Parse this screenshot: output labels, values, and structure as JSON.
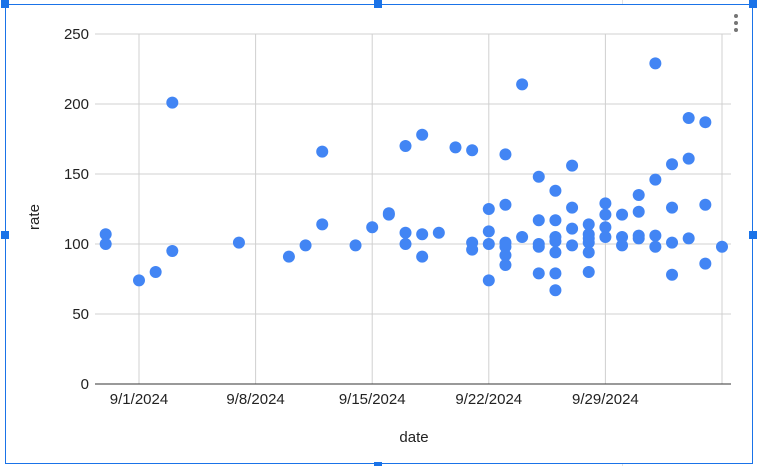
{
  "chart_data": {
    "type": "scatter",
    "title": "",
    "xlabel": "date",
    "ylabel": "rate",
    "ylim": [
      0,
      250
    ],
    "xlim": [
      "2024-08-29",
      "2024-10-07"
    ],
    "yticks": [
      "0",
      "50",
      "100",
      "150",
      "200",
      "250"
    ],
    "xticks": [
      {
        "date": "2024-09-01",
        "label": "9/1/2024"
      },
      {
        "date": "2024-09-08",
        "label": "9/8/2024"
      },
      {
        "date": "2024-09-15",
        "label": "9/15/2024"
      },
      {
        "date": "2024-09-22",
        "label": "9/22/2024"
      },
      {
        "date": "2024-09-29",
        "label": "9/29/2024"
      },
      {
        "date": "2024-10-06",
        "label": ""
      }
    ],
    "grid": true,
    "legend": "none",
    "color": "#4285f4",
    "points": [
      [
        "2024-08-30",
        107
      ],
      [
        "2024-08-30",
        100
      ],
      [
        "2024-09-01",
        74
      ],
      [
        "2024-09-02",
        80
      ],
      [
        "2024-09-03",
        201
      ],
      [
        "2024-09-03",
        95
      ],
      [
        "2024-09-07",
        101
      ],
      [
        "2024-09-10",
        91
      ],
      [
        "2024-09-11",
        99
      ],
      [
        "2024-09-12",
        166
      ],
      [
        "2024-09-12",
        114
      ],
      [
        "2024-09-14",
        99
      ],
      [
        "2024-09-15",
        112
      ],
      [
        "2024-09-16",
        122
      ],
      [
        "2024-09-16",
        121
      ],
      [
        "2024-09-17",
        170
      ],
      [
        "2024-09-17",
        108
      ],
      [
        "2024-09-17",
        100
      ],
      [
        "2024-09-18",
        178
      ],
      [
        "2024-09-18",
        107
      ],
      [
        "2024-09-18",
        91
      ],
      [
        "2024-09-19",
        108
      ],
      [
        "2024-09-20",
        169
      ],
      [
        "2024-09-21",
        167
      ],
      [
        "2024-09-21",
        101
      ],
      [
        "2024-09-21",
        96
      ],
      [
        "2024-09-22",
        125
      ],
      [
        "2024-09-22",
        109
      ],
      [
        "2024-09-22",
        100
      ],
      [
        "2024-09-22",
        74
      ],
      [
        "2024-09-23",
        164
      ],
      [
        "2024-09-23",
        128
      ],
      [
        "2024-09-23",
        101
      ],
      [
        "2024-09-23",
        98
      ],
      [
        "2024-09-23",
        92
      ],
      [
        "2024-09-23",
        85
      ],
      [
        "2024-09-24",
        214
      ],
      [
        "2024-09-24",
        105
      ],
      [
        "2024-09-25",
        148
      ],
      [
        "2024-09-25",
        117
      ],
      [
        "2024-09-25",
        100
      ],
      [
        "2024-09-25",
        98
      ],
      [
        "2024-09-25",
        79
      ],
      [
        "2024-09-26",
        138
      ],
      [
        "2024-09-26",
        117
      ],
      [
        "2024-09-26",
        105
      ],
      [
        "2024-09-26",
        102
      ],
      [
        "2024-09-26",
        94
      ],
      [
        "2024-09-26",
        79
      ],
      [
        "2024-09-26",
        67
      ],
      [
        "2024-09-27",
        156
      ],
      [
        "2024-09-27",
        126
      ],
      [
        "2024-09-27",
        111
      ],
      [
        "2024-09-27",
        99
      ],
      [
        "2024-09-28",
        114
      ],
      [
        "2024-09-28",
        107
      ],
      [
        "2024-09-28",
        104
      ],
      [
        "2024-09-28",
        101
      ],
      [
        "2024-09-28",
        94
      ],
      [
        "2024-09-28",
        80
      ],
      [
        "2024-09-29",
        129
      ],
      [
        "2024-09-29",
        121
      ],
      [
        "2024-09-29",
        112
      ],
      [
        "2024-09-29",
        105
      ],
      [
        "2024-09-30",
        121
      ],
      [
        "2024-09-30",
        105
      ],
      [
        "2024-09-30",
        99
      ],
      [
        "2024-10-01",
        135
      ],
      [
        "2024-10-01",
        123
      ],
      [
        "2024-10-01",
        106
      ],
      [
        "2024-10-01",
        104
      ],
      [
        "2024-10-02",
        229
      ],
      [
        "2024-10-02",
        146
      ],
      [
        "2024-10-02",
        106
      ],
      [
        "2024-10-02",
        98
      ],
      [
        "2024-10-03",
        157
      ],
      [
        "2024-10-03",
        126
      ],
      [
        "2024-10-03",
        101
      ],
      [
        "2024-10-03",
        78
      ],
      [
        "2024-10-04",
        190
      ],
      [
        "2024-10-04",
        161
      ],
      [
        "2024-10-04",
        104
      ],
      [
        "2024-10-05",
        187
      ],
      [
        "2024-10-05",
        128
      ],
      [
        "2024-10-05",
        86
      ],
      [
        "2024-10-06",
        98
      ]
    ]
  },
  "menu_icon": "more-vert-icon"
}
